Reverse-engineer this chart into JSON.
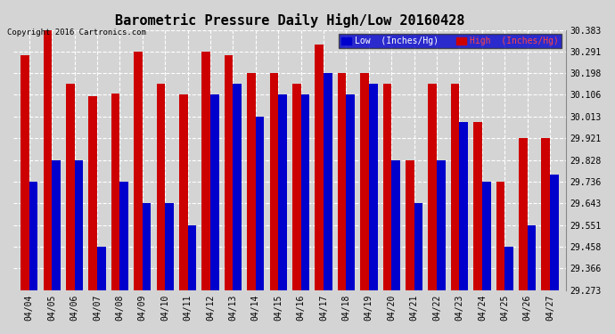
{
  "title": "Barometric Pressure Daily High/Low 20160428",
  "copyright": "Copyright 2016 Cartronics.com",
  "dates": [
    "04/04",
    "04/05",
    "04/06",
    "04/07",
    "04/08",
    "04/09",
    "04/10",
    "04/11",
    "04/12",
    "04/13",
    "04/14",
    "04/15",
    "04/16",
    "04/17",
    "04/18",
    "04/19",
    "04/20",
    "04/21",
    "04/22",
    "04/23",
    "04/24",
    "04/25",
    "04/26",
    "04/27"
  ],
  "high": [
    30.275,
    30.383,
    30.152,
    30.1,
    30.113,
    30.291,
    30.152,
    30.106,
    30.291,
    30.275,
    30.198,
    30.198,
    30.152,
    30.321,
    30.198,
    30.198,
    30.152,
    29.828,
    30.152,
    30.152,
    29.99,
    29.736,
    29.921,
    29.921
  ],
  "low": [
    29.736,
    29.828,
    29.828,
    29.458,
    29.736,
    29.643,
    29.643,
    29.551,
    30.106,
    30.152,
    30.013,
    30.106,
    30.106,
    30.198,
    30.106,
    30.152,
    29.828,
    29.643,
    29.828,
    29.99,
    29.736,
    29.458,
    29.551,
    29.767
  ],
  "ylim_min": 29.273,
  "ylim_max": 30.383,
  "yticks": [
    29.273,
    29.366,
    29.458,
    29.551,
    29.643,
    29.736,
    29.828,
    29.921,
    30.013,
    30.106,
    30.198,
    30.291,
    30.383
  ],
  "bar_width": 0.38,
  "low_color": "#0000cc",
  "high_color": "#cc0000",
  "bg_color": "#d4d4d4",
  "plot_bg_color": "#d4d4d4",
  "grid_color": "#ffffff",
  "legend_low_label": "Low  (Inches/Hg)",
  "legend_high_label": "High  (Inches/Hg)"
}
